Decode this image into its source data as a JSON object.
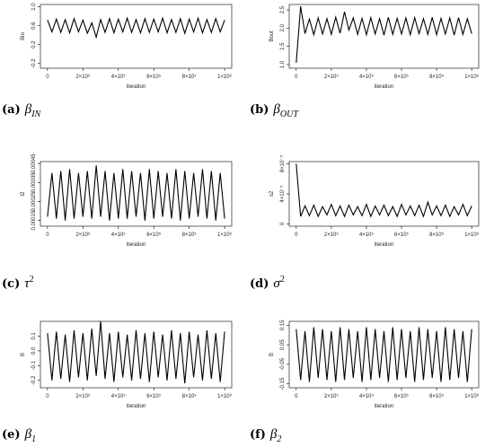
{
  "chart_data": [
    {
      "type": "line",
      "caption": {
        "label": "(a)",
        "symbol": "β",
        "sub": "IN"
      },
      "ylabel": "Bin",
      "xlabel": "iteration",
      "color": "#000000",
      "x": [
        0,
        25000,
        50000,
        75000,
        100000,
        125000,
        150000,
        175000,
        200000,
        225000,
        250000,
        275000,
        300000,
        325000,
        350000,
        375000,
        400000,
        425000,
        450000,
        475000,
        500000,
        525000,
        550000,
        575000,
        600000,
        625000,
        650000,
        675000,
        700000,
        725000,
        750000,
        775000,
        800000,
        825000,
        850000,
        875000,
        900000,
        925000,
        950000,
        975000,
        1000000
      ],
      "values": [
        0.72,
        0.47,
        0.74,
        0.46,
        0.73,
        0.45,
        0.75,
        0.47,
        0.72,
        0.44,
        0.66,
        0.36,
        0.73,
        0.46,
        0.75,
        0.45,
        0.74,
        0.47,
        0.76,
        0.46,
        0.73,
        0.45,
        0.75,
        0.46,
        0.74,
        0.47,
        0.76,
        0.45,
        0.73,
        0.46,
        0.75,
        0.44,
        0.74,
        0.47,
        0.76,
        0.45,
        0.73,
        0.46,
        0.75,
        0.47,
        0.72
      ],
      "xlim": [
        -40000,
        1040000
      ],
      "ylim": [
        -0.3,
        1.05
      ],
      "xticks": [
        0,
        {
          "value": 200000,
          "label": "2×10⁵"
        },
        {
          "value": 400000,
          "label": "4×10⁵"
        },
        {
          "value": 600000,
          "label": "6×10⁵"
        },
        {
          "value": 800000,
          "label": "8×10⁵"
        },
        {
          "value": 1000000,
          "label": "1×10⁶"
        }
      ],
      "yticks": [
        -0.2,
        0.2,
        0.6,
        {
          "value": 1,
          "label": "1.0"
        }
      ]
    },
    {
      "type": "line",
      "caption": {
        "label": "(b)",
        "symbol": "β",
        "sub": "OUT"
      },
      "ylabel": "Bout",
      "xlabel": "iteration",
      "color": "#000000",
      "x": [
        0,
        25000,
        50000,
        75000,
        100000,
        125000,
        150000,
        175000,
        200000,
        225000,
        250000,
        275000,
        300000,
        325000,
        350000,
        375000,
        400000,
        425000,
        450000,
        475000,
        500000,
        525000,
        550000,
        575000,
        600000,
        625000,
        650000,
        675000,
        700000,
        725000,
        750000,
        775000,
        800000,
        825000,
        850000,
        875000,
        900000,
        925000,
        950000,
        975000,
        1000000
      ],
      "values": [
        1.05,
        2.6,
        1.85,
        2.25,
        1.82,
        2.28,
        1.84,
        2.26,
        1.83,
        2.3,
        1.86,
        2.45,
        1.95,
        2.28,
        1.83,
        2.27,
        1.82,
        2.29,
        1.84,
        2.26,
        1.81,
        2.3,
        1.83,
        2.27,
        1.84,
        2.28,
        1.82,
        2.29,
        1.85,
        2.26,
        1.83,
        2.3,
        1.82,
        2.27,
        1.84,
        2.28,
        1.81,
        2.29,
        1.83,
        2.26,
        1.85
      ],
      "xlim": [
        -40000,
        1040000
      ],
      "ylim": [
        0.9,
        2.65
      ],
      "xticks": [
        0,
        {
          "value": 200000,
          "label": "2×10⁵"
        },
        {
          "value": 400000,
          "label": "4×10⁵"
        },
        {
          "value": 600000,
          "label": "6×10⁵"
        },
        {
          "value": 800000,
          "label": "8×10⁵"
        },
        {
          "value": 1000000,
          "label": "1×10⁶"
        }
      ],
      "yticks": [
        {
          "value": 1,
          "label": "1.0"
        },
        1.5,
        {
          "value": 2,
          "label": "2.0"
        },
        2.5
      ]
    },
    {
      "type": "line",
      "caption": {
        "label": "(c)",
        "symbol": "τ",
        "sup": "2"
      },
      "ylabel": "t2",
      "xlabel": "iteration",
      "color": "#000000",
      "x": [
        0,
        25000,
        50000,
        75000,
        100000,
        125000,
        150000,
        175000,
        200000,
        225000,
        250000,
        275000,
        300000,
        325000,
        350000,
        375000,
        400000,
        425000,
        450000,
        475000,
        500000,
        525000,
        550000,
        575000,
        600000,
        625000,
        650000,
        675000,
        700000,
        725000,
        750000,
        775000,
        800000,
        825000,
        850000,
        875000,
        900000,
        925000,
        950000,
        975000,
        1000000
      ],
      "values": [
        0.00017,
        0.0004,
        0.00016,
        0.00041,
        0.00015,
        0.00042,
        0.00016,
        0.0004,
        0.00017,
        0.00041,
        0.00016,
        0.00044,
        0.00017,
        0.00041,
        0.00015,
        0.0004,
        0.00016,
        0.00042,
        0.00016,
        0.00041,
        0.00017,
        0.0004,
        0.00015,
        0.00042,
        0.00016,
        0.00041,
        0.00017,
        0.0004,
        0.00016,
        0.00042,
        0.00015,
        0.00041,
        0.00016,
        0.0004,
        0.00017,
        0.00042,
        0.00016,
        0.00041,
        0.00015,
        0.0004,
        0.00016
      ],
      "xlim": [
        -40000,
        1040000
      ],
      "ylim": [
        0.00012,
        0.00046
      ],
      "xticks": [
        0,
        {
          "value": 200000,
          "label": "2×10⁵"
        },
        {
          "value": 400000,
          "label": "4×10⁵"
        },
        {
          "value": 600000,
          "label": "6×10⁵"
        },
        {
          "value": 800000,
          "label": "8×10⁵"
        },
        {
          "value": 1000000,
          "label": "1×10⁶"
        }
      ],
      "yticks": [
        0.00015,
        0.00025,
        0.00035,
        0.00045
      ]
    },
    {
      "type": "line",
      "caption": {
        "label": "(d)",
        "symbol": "σ",
        "sup": "2"
      },
      "ylabel": "s2",
      "xlabel": "iteration",
      "color": "#000000",
      "x": [
        0,
        25000,
        50000,
        75000,
        100000,
        125000,
        150000,
        175000,
        200000,
        225000,
        250000,
        275000,
        300000,
        325000,
        350000,
        375000,
        400000,
        425000,
        450000,
        475000,
        500000,
        525000,
        550000,
        575000,
        600000,
        625000,
        650000,
        675000,
        700000,
        725000,
        750000,
        775000,
        800000,
        825000,
        850000,
        875000,
        900000,
        925000,
        950000,
        975000,
        1000000
      ],
      "values": [
        8e-05,
        1e-05,
        2.4e-05,
        1.1e-05,
        2.5e-05,
        1e-05,
        2.3e-05,
        1.2e-05,
        2.6e-05,
        1.1e-05,
        2.4e-05,
        1e-05,
        2.5e-05,
        1.2e-05,
        2.3e-05,
        1.1e-05,
        2.6e-05,
        1e-05,
        2.4e-05,
        1.2e-05,
        2.5e-05,
        1.1e-05,
        2.3e-05,
        1e-05,
        2.6e-05,
        1.2e-05,
        2.4e-05,
        1.1e-05,
        2.5e-05,
        1e-05,
        2.9e-05,
        1.2e-05,
        2.4e-05,
        1.1e-05,
        2.5e-05,
        1e-05,
        2.3e-05,
        1.2e-05,
        2.6e-05,
        1.1e-05,
        2.4e-05
      ],
      "xlim": [
        -40000,
        1040000
      ],
      "ylim": [
        -3e-06,
        8.3e-05
      ],
      "xticks": [
        0,
        {
          "value": 200000,
          "label": "2×10⁵"
        },
        {
          "value": 400000,
          "label": "4×10⁵"
        },
        {
          "value": 600000,
          "label": "6×10⁵"
        },
        {
          "value": 800000,
          "label": "8×10⁵"
        },
        {
          "value": 1000000,
          "label": "1×10⁶"
        }
      ],
      "yticks": [
        0,
        {
          "value": 4e-05,
          "label": "4×10⁻⁵"
        },
        {
          "value": 8e-05,
          "label": "8×10⁻⁵"
        }
      ]
    },
    {
      "type": "line",
      "caption": {
        "label": "(e)",
        "symbol": "β",
        "sub": "1"
      },
      "ylabel": "B",
      "xlabel": "iteration",
      "color": "#000000",
      "x": [
        0,
        25000,
        50000,
        75000,
        100000,
        125000,
        150000,
        175000,
        200000,
        225000,
        250000,
        275000,
        300000,
        325000,
        350000,
        375000,
        400000,
        425000,
        450000,
        475000,
        500000,
        525000,
        550000,
        575000,
        600000,
        625000,
        650000,
        675000,
        700000,
        725000,
        750000,
        775000,
        800000,
        825000,
        850000,
        875000,
        900000,
        925000,
        950000,
        975000,
        1000000
      ],
      "values": [
        0.12,
        -0.2,
        0.13,
        -0.19,
        0.11,
        -0.21,
        0.14,
        -0.18,
        0.12,
        -0.2,
        0.15,
        -0.17,
        0.2,
        -0.19,
        0.12,
        -0.21,
        0.13,
        -0.18,
        0.11,
        -0.2,
        0.14,
        -0.19,
        0.12,
        -0.21,
        0.13,
        -0.18,
        0.11,
        -0.2,
        0.14,
        -0.19,
        0.12,
        -0.22,
        0.13,
        -0.18,
        0.11,
        -0.2,
        0.14,
        -0.19,
        0.12,
        -0.21,
        0.13
      ],
      "xlim": [
        -40000,
        1040000
      ],
      "ylim": [
        -0.25,
        0.2
      ],
      "xticks": [
        0,
        {
          "value": 200000,
          "label": "2×10⁵"
        },
        {
          "value": 400000,
          "label": "4×10⁵"
        },
        {
          "value": 600000,
          "label": "6×10⁵"
        },
        {
          "value": 800000,
          "label": "8×10⁵"
        },
        {
          "value": 1000000,
          "label": "1×10⁶"
        }
      ],
      "yticks": [
        -0.2,
        -0.1,
        {
          "value": 0,
          "label": "0.0"
        },
        0.1
      ]
    },
    {
      "type": "line",
      "caption": {
        "label": "(f)",
        "symbol": "β",
        "sub": "2"
      },
      "ylabel": "B",
      "xlabel": "iteration",
      "color": "#000000",
      "x": [
        0,
        25000,
        50000,
        75000,
        100000,
        125000,
        150000,
        175000,
        200000,
        225000,
        250000,
        275000,
        300000,
        325000,
        350000,
        375000,
        400000,
        425000,
        450000,
        475000,
        500000,
        525000,
        550000,
        575000,
        600000,
        625000,
        650000,
        675000,
        700000,
        725000,
        750000,
        775000,
        800000,
        825000,
        850000,
        875000,
        900000,
        925000,
        950000,
        975000,
        1000000
      ],
      "values": [
        0.13,
        -0.13,
        0.12,
        -0.14,
        0.14,
        -0.12,
        0.13,
        -0.13,
        0.12,
        -0.14,
        0.14,
        -0.13,
        0.13,
        -0.12,
        0.12,
        -0.14,
        0.14,
        -0.13,
        0.13,
        -0.12,
        0.12,
        -0.14,
        0.14,
        -0.13,
        0.13,
        -0.12,
        0.12,
        -0.14,
        0.14,
        -0.13,
        0.13,
        -0.12,
        0.12,
        -0.14,
        0.14,
        -0.13,
        0.13,
        -0.12,
        0.12,
        -0.14,
        0.13
      ],
      "xlim": [
        -40000,
        1040000
      ],
      "ylim": [
        -0.17,
        0.17
      ],
      "xticks": [
        0,
        {
          "value": 200000,
          "label": "2×10⁵"
        },
        {
          "value": 400000,
          "label": "4×10⁵"
        },
        {
          "value": 600000,
          "label": "6×10⁵"
        },
        {
          "value": 800000,
          "label": "8×10⁵"
        },
        {
          "value": 1000000,
          "label": "1×10⁶"
        }
      ],
      "yticks": [
        -0.15,
        -0.05,
        0.05,
        0.15
      ]
    }
  ]
}
